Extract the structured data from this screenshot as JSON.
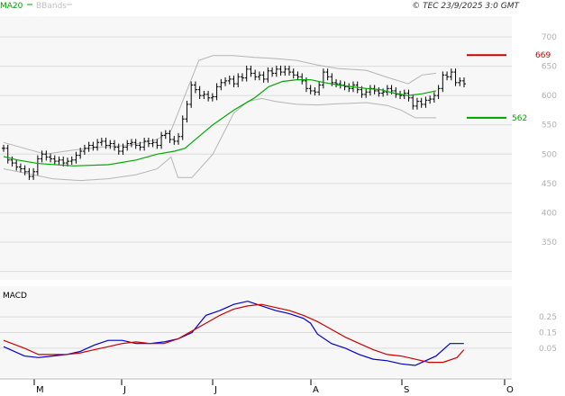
{
  "header": {
    "legend_ma": "MA20",
    "legend_bb": "BBands",
    "copyright": "© TEC 23/9/2025 3:0 GMT"
  },
  "indicator_label": "MACD",
  "colors": {
    "background": "#ffffff",
    "panel_fill": "#f7f7f7",
    "grid": "#dcdcdc",
    "axis_text": "#b0b0b0",
    "price_bar": "#000000",
    "ma20": "#00aa00",
    "bbands": "#b4b4b4",
    "resistance": "#cc0000",
    "support": "#00a000",
    "macd_line": "#0000cc",
    "signal_line": "#cc0000"
  },
  "chart_data": [
    {
      "type": "line",
      "subtype": "ohlc_bars_with_bollinger",
      "title": "",
      "x_ticks": [
        "M",
        "J",
        "J",
        "A",
        "S",
        "O"
      ],
      "y_ticks": [
        "700",
        "650",
        "600",
        "550",
        "500",
        "450",
        "400",
        "350"
      ],
      "ylim": [
        300,
        710
      ],
      "grid": true,
      "y_axis_side": "right",
      "levels": {
        "resistance": {
          "value": 669,
          "label": "669"
        },
        "support": {
          "value": 562,
          "label": "562"
        }
      },
      "series": [
        {
          "name": "MA20",
          "key": "ma20",
          "values": [
            [
              0,
              496
            ],
            [
              4,
              490
            ],
            [
              10,
              484
            ],
            [
              20,
              480
            ],
            [
              30,
              482
            ],
            [
              38,
              490
            ],
            [
              44,
              500
            ],
            [
              49,
              505
            ],
            [
              52,
              510
            ],
            [
              56,
              530
            ],
            [
              60,
              550
            ],
            [
              66,
              575
            ],
            [
              72,
              596
            ],
            [
              76,
              615
            ],
            [
              80,
              624
            ],
            [
              84,
              627
            ],
            [
              88,
              627
            ],
            [
              92,
              622
            ],
            [
              96,
              618
            ],
            [
              100,
              615
            ],
            [
              104,
              612
            ],
            [
              108,
              610
            ],
            [
              112,
              604
            ],
            [
              116,
              600
            ],
            [
              120,
              603
            ],
            [
              124,
              608
            ]
          ]
        },
        {
          "name": "BBands",
          "key": "bb_upper",
          "values": [
            [
              0,
              520
            ],
            [
              6,
              510
            ],
            [
              12,
              500
            ],
            [
              20,
              507
            ],
            [
              28,
              512
            ],
            [
              36,
              515
            ],
            [
              44,
              525
            ],
            [
              48,
              540
            ],
            [
              52,
              600
            ],
            [
              56,
              660
            ],
            [
              60,
              668
            ],
            [
              66,
              668
            ],
            [
              72,
              665
            ],
            [
              78,
              663
            ],
            [
              84,
              660
            ],
            [
              90,
              652
            ],
            [
              96,
              646
            ],
            [
              104,
              643
            ],
            [
              110,
              631
            ],
            [
              116,
              620
            ],
            [
              120,
              635
            ],
            [
              124,
              638
            ]
          ]
        },
        {
          "name": "BBands",
          "key": "bb_lower",
          "values": [
            [
              0,
              475
            ],
            [
              6,
              468
            ],
            [
              14,
              458
            ],
            [
              22,
              455
            ],
            [
              30,
              458
            ],
            [
              38,
              465
            ],
            [
              44,
              475
            ],
            [
              48,
              495
            ],
            [
              50,
              460
            ],
            [
              54,
              460
            ],
            [
              60,
              500
            ],
            [
              66,
              570
            ],
            [
              70,
              590
            ],
            [
              74,
              595
            ],
            [
              78,
              590
            ],
            [
              84,
              585
            ],
            [
              90,
              584
            ],
            [
              96,
              586
            ],
            [
              104,
              588
            ],
            [
              110,
              583
            ],
            [
              114,
              575
            ],
            [
              118,
              562
            ],
            [
              124,
              562
            ]
          ]
        }
      ],
      "ohlc_close": [
        510,
        490,
        485,
        478,
        475,
        470,
        462,
        470,
        492,
        500,
        495,
        492,
        488,
        490,
        485,
        488,
        490,
        498,
        505,
        510,
        515,
        512,
        520,
        522,
        515,
        518,
        512,
        505,
        512,
        518,
        520,
        515,
        512,
        522,
        518,
        520,
        515,
        532,
        535,
        525,
        522,
        530,
        560,
        585,
        618,
        610,
        600,
        602,
        596,
        598,
        615,
        622,
        625,
        628,
        620,
        632,
        630,
        645,
        638,
        632,
        635,
        628,
        642,
        638,
        645,
        640,
        645,
        640,
        635,
        632,
        625,
        612,
        608,
        606,
        618,
        640,
        632,
        622,
        620,
        618,
        615,
        612,
        618,
        610,
        602,
        606,
        612,
        608,
        604,
        606,
        612,
        608,
        602,
        600,
        604,
        596,
        582,
        590,
        585,
        592,
        594,
        600,
        612,
        635,
        632,
        640,
        622,
        625,
        620
      ]
    },
    {
      "type": "line",
      "title": "MACD",
      "y_ticks": [
        "25",
        "15",
        "05"
      ],
      "x_ticks": [
        "M",
        "J",
        "J",
        "A",
        "S",
        "O"
      ],
      "grid": true,
      "series": [
        {
          "name": "MACD",
          "key": "macd",
          "values": [
            [
              0,
              6
            ],
            [
              6,
              0
            ],
            [
              10,
              -1
            ],
            [
              14,
              0
            ],
            [
              18,
              1
            ],
            [
              22,
              3
            ],
            [
              26,
              7
            ],
            [
              30,
              10
            ],
            [
              34,
              10
            ],
            [
              38,
              8
            ],
            [
              42,
              8
            ],
            [
              46,
              9
            ],
            [
              50,
              11
            ],
            [
              54,
              15
            ],
            [
              58,
              26
            ],
            [
              62,
              29
            ],
            [
              66,
              33
            ],
            [
              70,
              35
            ],
            [
              74,
              32
            ],
            [
              78,
              29
            ],
            [
              82,
              27
            ],
            [
              86,
              24
            ],
            [
              88,
              21
            ],
            [
              90,
              14
            ],
            [
              94,
              8
            ],
            [
              98,
              5
            ],
            [
              102,
              1
            ],
            [
              106,
              -2
            ],
            [
              110,
              -3
            ],
            [
              114,
              -5
            ],
            [
              118,
              -6
            ],
            [
              120,
              -4
            ],
            [
              124,
              0
            ],
            [
              128,
              8
            ],
            [
              132,
              8
            ]
          ]
        },
        {
          "name": "Signal",
          "key": "signal",
          "values": [
            [
              0,
              10
            ],
            [
              6,
              5
            ],
            [
              10,
              1
            ],
            [
              14,
              1
            ],
            [
              18,
              1
            ],
            [
              22,
              2
            ],
            [
              26,
              4
            ],
            [
              30,
              6
            ],
            [
              34,
              8
            ],
            [
              38,
              9
            ],
            [
              42,
              8
            ],
            [
              46,
              8
            ],
            [
              50,
              11
            ],
            [
              54,
              16
            ],
            [
              58,
              21
            ],
            [
              62,
              26
            ],
            [
              66,
              30
            ],
            [
              70,
              32
            ],
            [
              74,
              33
            ],
            [
              78,
              31
            ],
            [
              82,
              29
            ],
            [
              86,
              26
            ],
            [
              90,
              22
            ],
            [
              94,
              17
            ],
            [
              98,
              12
            ],
            [
              102,
              8
            ],
            [
              106,
              4
            ],
            [
              110,
              1
            ],
            [
              114,
              0
            ],
            [
              118,
              -2
            ],
            [
              122,
              -4
            ],
            [
              126,
              -4
            ],
            [
              130,
              -1
            ],
            [
              132,
              4
            ]
          ]
        }
      ],
      "ylim": [
        -10,
        40
      ]
    }
  ]
}
